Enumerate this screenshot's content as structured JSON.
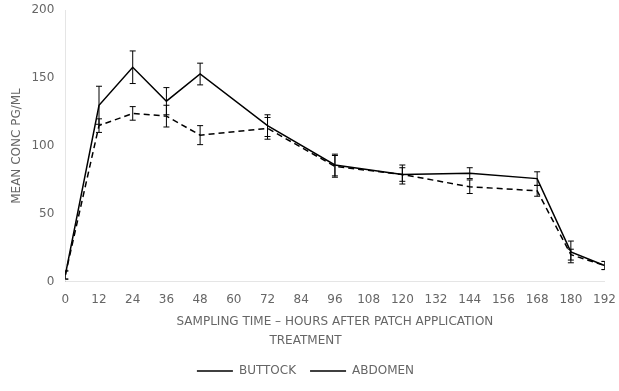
{
  "chart_data": {
    "type": "line",
    "xlabel": "SAMPLING TIME – HOURS AFTER PATCH APPLICATION",
    "ylabel": "MEAN CONC PG/ML",
    "legend_title": "TREATMENT",
    "legend": "bottom",
    "grid": false,
    "x": [
      0,
      12,
      24,
      36,
      48,
      72,
      96,
      120,
      144,
      168,
      180,
      192
    ],
    "series": [
      {
        "name": "BUTTOCK",
        "color": "#000000",
        "line_style": "solid",
        "values": [
          5,
          130,
          158,
          133,
          153,
          115,
          86,
          79,
          80,
          76,
          22,
          12
        ],
        "error": [
          3,
          14,
          12,
          10,
          8,
          8,
          8,
          5,
          4,
          5,
          8,
          3
        ]
      },
      {
        "name": "ABDOMEN",
        "color": "#000000",
        "line_style": "dashed",
        "values": [
          5,
          115,
          124,
          122,
          108,
          113,
          85,
          79,
          70,
          67,
          20,
          12
        ],
        "error": [
          3,
          5,
          5,
          8,
          7,
          8,
          8,
          7,
          5,
          4,
          4,
          3
        ]
      }
    ],
    "xlim": [
      0,
      192
    ],
    "ylim": [
      0,
      200
    ],
    "xticks": [
      0,
      12,
      24,
      36,
      48,
      60,
      72,
      84,
      96,
      108,
      120,
      132,
      144,
      156,
      168,
      180,
      192
    ],
    "yticks": [
      0,
      50,
      100,
      150,
      200
    ]
  }
}
